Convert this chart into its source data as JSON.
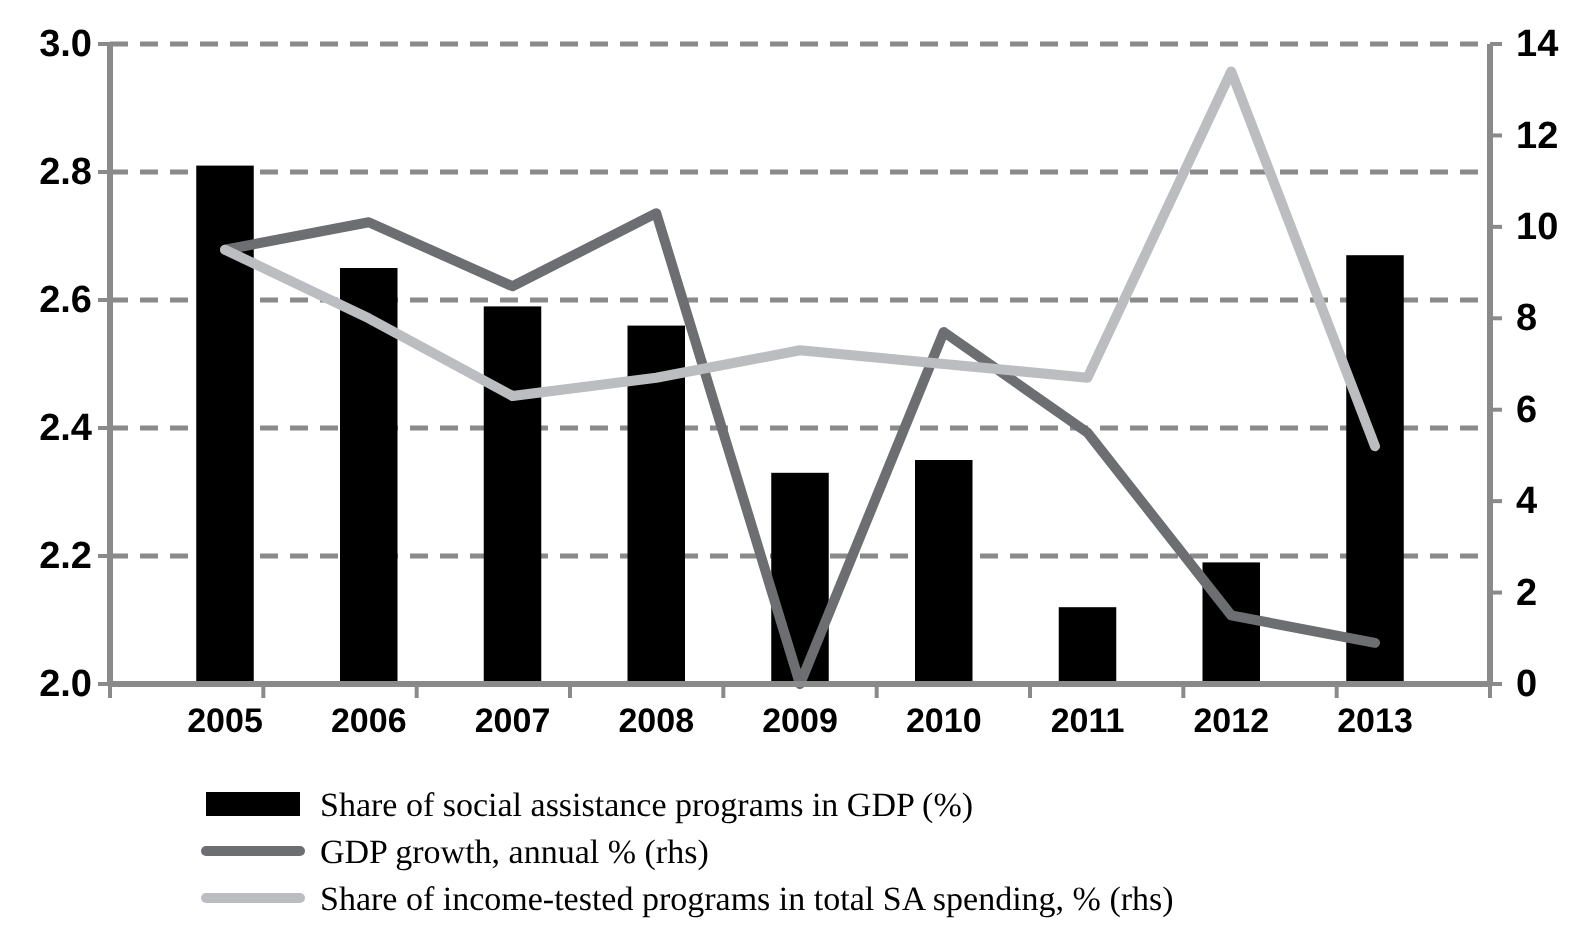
{
  "chart_data": {
    "type": "bar",
    "categories": [
      "2005",
      "2006",
      "2007",
      "2008",
      "2009",
      "2010",
      "2011",
      "2012",
      "2013"
    ],
    "series": [
      {
        "name": "Share of social assistance programs in GDP (%)",
        "color": "#000000",
        "values": [
          2.81,
          2.65,
          2.59,
          2.56,
          2.33,
          2.35,
          2.12,
          2.19,
          2.67
        ]
      },
      {
        "name": "GDP growth, annual % (rhs)",
        "type": "line",
        "axis": "y2",
        "color": "#6d6e71",
        "values": [
          9.5,
          10.1,
          8.7,
          10.3,
          0,
          7.7,
          5.5,
          1.5,
          0.9
        ]
      },
      {
        "name": "Share of income-tested programs in total SA spending, % (rhs)",
        "type": "line",
        "axis": "y2",
        "color": "#bcbdc0",
        "values": [
          9.5,
          8.0,
          6.3,
          6.7,
          7.3,
          7.0,
          6.7,
          13.4,
          5.2
        ]
      }
    ],
    "ylim": [
      2.0,
      3.0
    ],
    "yticks": [
      {
        "value": 2.0,
        "label": "2.0"
      },
      {
        "value": 2.2,
        "label": "2.2"
      },
      {
        "value": 2.4,
        "label": "2.4"
      },
      {
        "value": 2.6,
        "label": "2.6"
      },
      {
        "value": 2.8,
        "label": "2.8"
      },
      {
        "value": 3.0,
        "label": "3.0"
      }
    ],
    "y2lim": [
      0,
      14
    ],
    "y2ticks": [
      0,
      2,
      4,
      6,
      8,
      10,
      12,
      14
    ],
    "grid": "y",
    "legend": "bottom",
    "marker": "none",
    "line_style": "solid"
  }
}
